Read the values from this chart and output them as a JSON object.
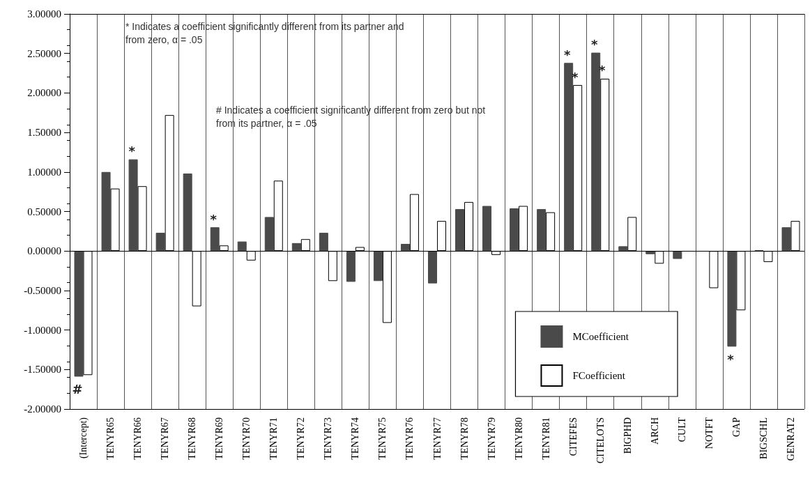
{
  "chart_data": {
    "type": "bar",
    "categories": [
      "(Intercept)",
      "TENYR65",
      "TENYR66",
      "TENYR67",
      "TENYR68",
      "TENYR69",
      "TENYR70",
      "TENYR71",
      "TENYR72",
      "TENYR73",
      "TENYR74",
      "TENYR75",
      "TENYR76",
      "TENYR77",
      "TENYR78",
      "TENYR79",
      "TENYR80",
      "TENYR81",
      "CITEFES",
      "CITELOTS",
      "BIGPHD",
      "ARCH",
      "CULT",
      "NOTFT",
      "GAP",
      "BIGSCHL",
      "GENRAT2"
    ],
    "series": [
      {
        "name": "MCoefficient",
        "color": "#4a4a4a",
        "values": [
          -1.59,
          1.0,
          1.16,
          0.23,
          0.98,
          0.3,
          0.12,
          0.43,
          0.1,
          0.23,
          -0.39,
          -0.38,
          0.09,
          -0.41,
          0.53,
          0.57,
          0.54,
          0.53,
          2.38,
          2.51,
          0.06,
          -0.04,
          -0.1,
          0.0,
          -1.21,
          0.01,
          0.3
        ]
      },
      {
        "name": "FCoefficient",
        "color": "#ffffff",
        "values": [
          -1.57,
          0.79,
          0.82,
          1.72,
          -0.7,
          0.07,
          -0.12,
          0.89,
          0.15,
          -0.38,
          0.05,
          -0.91,
          0.72,
          0.38,
          0.62,
          -0.05,
          0.57,
          0.49,
          2.1,
          2.18,
          0.43,
          -0.16,
          0.0,
          -0.47,
          -0.75,
          -0.14,
          0.38
        ]
      }
    ],
    "ylim": [
      -2,
      3
    ],
    "yticks": [
      {
        "value": -2,
        "label": "-2.00000"
      },
      {
        "value": -1.5,
        "label": "-1.50000"
      },
      {
        "value": -1,
        "label": "-1.00000"
      },
      {
        "value": -0.5,
        "label": "-0.50000"
      },
      {
        "value": 0,
        "label": "0.00000"
      },
      {
        "value": 0.5,
        "label": "0.50000"
      },
      {
        "value": 1,
        "label": "1.00000"
      },
      {
        "value": 1.5,
        "label": "1.50000"
      },
      {
        "value": 2,
        "label": "2.00000"
      },
      {
        "value": 2.5,
        "label": "2.50000"
      },
      {
        "value": 3,
        "label": "3.00000"
      }
    ],
    "grid": "x",
    "legend": "bottom right",
    "annotations": [
      "* Indicates a coefficient significantly different from its partner and from zero, α = .05",
      "# Indicates a coefficient significantly different from zero but not from its partner, α = .05",
      {
        "text": "#",
        "x": "(Intercept)",
        "y": -1.59
      },
      {
        "text": "*",
        "x": "TENYR66",
        "y": 1.16
      },
      {
        "text": "*",
        "x": "TENYR69",
        "y": 0.3
      },
      {
        "text": "*",
        "x": "CITEFES",
        "y": 2.38
      },
      {
        "text": "*",
        "x": "CITEFES",
        "y": 2.1
      },
      {
        "text": "*",
        "x": "CITELOTS",
        "y": 2.51
      },
      {
        "text": "*",
        "x": "CITELOTS",
        "y": 2.18
      },
      {
        "text": "*",
        "x": "GAP",
        "y": -1.21
      }
    ]
  }
}
